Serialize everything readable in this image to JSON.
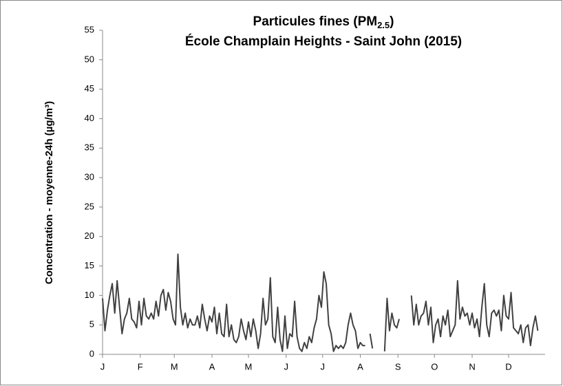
{
  "chart_data": {
    "type": "line",
    "title_lines": [
      [
        "Particules fines (PM",
        "2.5",
        ")"
      ],
      [
        "École Champlain Heights - Saint John (2015)"
      ]
    ],
    "y_label": "Concentration - moyenne-24h (µg/m³)",
    "x": [
      1,
      3,
      5,
      7,
      9,
      11,
      13,
      15,
      17,
      19,
      21,
      23,
      25,
      27,
      29,
      31,
      33,
      35,
      37,
      39,
      41,
      43,
      45,
      47,
      49,
      51,
      53,
      55,
      57,
      59,
      61,
      63,
      65,
      67,
      69,
      71,
      73,
      75,
      77,
      79,
      81,
      83,
      85,
      87,
      89,
      91,
      93,
      95,
      97,
      99,
      101,
      103,
      105,
      107,
      109,
      111,
      113,
      115,
      117,
      119,
      121,
      123,
      125,
      127,
      129,
      131,
      133,
      135,
      137,
      139,
      141,
      143,
      145,
      147,
      149,
      151,
      153,
      155,
      157,
      159,
      161,
      163,
      165,
      167,
      169,
      171,
      173,
      175,
      177,
      179,
      181,
      183,
      185,
      187,
      189,
      191,
      193,
      195,
      197,
      199,
      201,
      203,
      205,
      207,
      209,
      211,
      213,
      215,
      217,
      219,
      221,
      223,
      225,
      227,
      229,
      231,
      233,
      235,
      237,
      239,
      241,
      243,
      245,
      247,
      249,
      251,
      253,
      255,
      257,
      259,
      261,
      263,
      265,
      267,
      269,
      271,
      273,
      275,
      277,
      279,
      281,
      283,
      285,
      287,
      289,
      291,
      293,
      295,
      297,
      299,
      301,
      303,
      305,
      307,
      309,
      311,
      313,
      315,
      317,
      319,
      321,
      323,
      325,
      327,
      329,
      331,
      333,
      335,
      337,
      339,
      341,
      343,
      345,
      347,
      349,
      351,
      353,
      355,
      357,
      359
    ],
    "series": [
      {
        "color": "#404040",
        "values": [
          9.5,
          4,
          7.5,
          10,
          12,
          7,
          12.5,
          8,
          3.5,
          6,
          7,
          9.5,
          6,
          5.5,
          4.5,
          9,
          5,
          9.5,
          6.5,
          6,
          7,
          6,
          9,
          6.5,
          10,
          11,
          7.5,
          10.5,
          9,
          6,
          5,
          17,
          8,
          5,
          7,
          4.5,
          6,
          5,
          5,
          6.5,
          4.5,
          8.5,
          6,
          4,
          6.5,
          5.5,
          8,
          3.5,
          7,
          3.5,
          3,
          8.5,
          3,
          5,
          2.5,
          2,
          3,
          6,
          4,
          2.5,
          5.5,
          3,
          6,
          4,
          1,
          3.5,
          9.5,
          5,
          6,
          13,
          3,
          2,
          8,
          2.5,
          0.5,
          6.5,
          1,
          3.5,
          3,
          9,
          3,
          1,
          0.5,
          2,
          1,
          3,
          2,
          4.5,
          6,
          10,
          8,
          14,
          12,
          5,
          3.5,
          0.5,
          1.5,
          1,
          1.5,
          1,
          2,
          5,
          7,
          5,
          4,
          1,
          2,
          1.5,
          1.5,
          null,
          3.5,
          1,
          null,
          null,
          null,
          null,
          0.5,
          9.5,
          4,
          7,
          5,
          4.5,
          6,
          null,
          null,
          null,
          null,
          10,
          5,
          8.5,
          5,
          6.5,
          7,
          9,
          5,
          8,
          2,
          5,
          6,
          3,
          6.5,
          5,
          7.5,
          3,
          4,
          5,
          12.5,
          6,
          8,
          6.5,
          7,
          5,
          7,
          4.5,
          6,
          3,
          8,
          12,
          5,
          3,
          7,
          7.5,
          6.5,
          7.5,
          4,
          10,
          6.5,
          6,
          10.5,
          4.5,
          4,
          3.5,
          5,
          2,
          4.5,
          5,
          1.5,
          4.5,
          6.5,
          4
        ]
      }
    ],
    "xlim": [
      1,
      365
    ],
    "xticks": [
      {
        "value": 1,
        "label": "J"
      },
      {
        "value": 32,
        "label": "F"
      },
      {
        "value": 60,
        "label": "M"
      },
      {
        "value": 91,
        "label": "A"
      },
      {
        "value": 121,
        "label": "M"
      },
      {
        "value": 152,
        "label": "J"
      },
      {
        "value": 182,
        "label": "J"
      },
      {
        "value": 213,
        "label": "A"
      },
      {
        "value": 244,
        "label": "S"
      },
      {
        "value": 274,
        "label": "O"
      },
      {
        "value": 305,
        "label": "N"
      },
      {
        "value": 335,
        "label": "D"
      }
    ],
    "ylim": [
      0,
      55
    ],
    "yticks": [
      0,
      5,
      10,
      15,
      20,
      25,
      30,
      35,
      40,
      45,
      50,
      55
    ]
  }
}
